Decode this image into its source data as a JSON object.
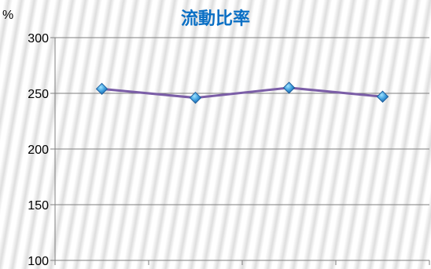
{
  "chart_data": {
    "type": "line",
    "title": "流動比率",
    "unit": "%",
    "xlabel": "",
    "ylabel": "",
    "categories": [
      "",
      "",
      "",
      ""
    ],
    "ylim": [
      100,
      300
    ],
    "yticks": [
      100,
      150,
      200,
      250,
      300
    ],
    "series": [
      {
        "values": [
          254,
          246,
          255,
          247
        ]
      }
    ],
    "grid": true,
    "legend": "none",
    "line_color": "#7b5ea7",
    "marker_color": "#3a9bdc",
    "title_color": "#0a6fc4"
  }
}
